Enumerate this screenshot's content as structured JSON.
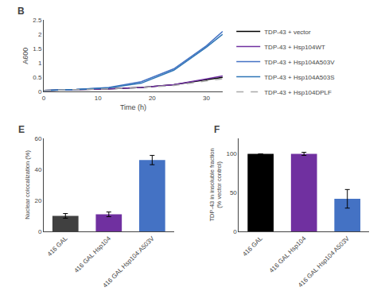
{
  "chart_data": [
    {
      "type": "line",
      "title": "B",
      "x_label": "Time (h)",
      "y_label": "A600",
      "x": [
        0,
        6,
        12,
        18,
        24,
        30,
        33
      ],
      "series": [
        {
          "name": "TDP-43 + vector",
          "color": "#000000",
          "line_style": "solid",
          "values": [
            0.05,
            0.07,
            0.1,
            0.15,
            0.25,
            0.42,
            0.5
          ]
        },
        {
          "name": "TDP-43 + Hsp104WT",
          "color": "#7030A0",
          "line_style": "solid",
          "values": [
            0.05,
            0.07,
            0.1,
            0.15,
            0.25,
            0.45,
            0.55
          ]
        },
        {
          "name": "TDP-43 + Hsp104A503V",
          "color": "#4472C4",
          "line_style": "solid",
          "values": [
            0.05,
            0.08,
            0.15,
            0.35,
            0.8,
            1.6,
            2.1
          ]
        },
        {
          "name": "TDP-43 + Hsp104A503S",
          "color": "#2E75B6",
          "line_style": "solid",
          "values": [
            0.05,
            0.08,
            0.14,
            0.3,
            0.75,
            1.55,
            2.0
          ]
        },
        {
          "name": "TDP-43 + Hsp104DPLF",
          "color": "#A9A9A9",
          "line_style": "dashed",
          "values": [
            0.05,
            0.07,
            0.1,
            0.15,
            0.22,
            0.38,
            0.45
          ]
        }
      ],
      "xlim": [
        0,
        33
      ],
      "xticks": [
        0,
        10,
        20,
        30
      ],
      "ylim": [
        0,
        2.5
      ],
      "yticks": [
        0,
        0.5,
        1,
        1.5,
        2,
        2.5
      ],
      "legend": "right",
      "grid": false
    },
    {
      "type": "bar",
      "title": "E",
      "y_label": "Nuclear colocalization (%)",
      "categories": [
        "416 GAL",
        "416 GAL Hsp104",
        "416 GAL Hsp104:A503V"
      ],
      "values": [
        10,
        11,
        46
      ],
      "errors": [
        1.5,
        1.5,
        3.0
      ],
      "colors": [
        "#404040",
        "#7030A0",
        "#4472C4"
      ],
      "ylim": [
        0,
        60
      ],
      "yticks": [
        0,
        20,
        40,
        60
      ],
      "grid": false
    },
    {
      "type": "bar",
      "title": "F",
      "y_label": "TDP-43 in insoluble fraction\n(% vector control)",
      "categories": [
        "416 GAL",
        "416 GAL Hsp104",
        "416 GAL Hsp104 A503V"
      ],
      "values": [
        100,
        100,
        42
      ],
      "errors": [
        0,
        2,
        12
      ],
      "colors": [
        "#000000",
        "#7030A0",
        "#4472C4"
      ],
      "ylim": [
        0,
        120
      ],
      "yticks": [
        0,
        50,
        100
      ],
      "grid": false
    }
  ]
}
